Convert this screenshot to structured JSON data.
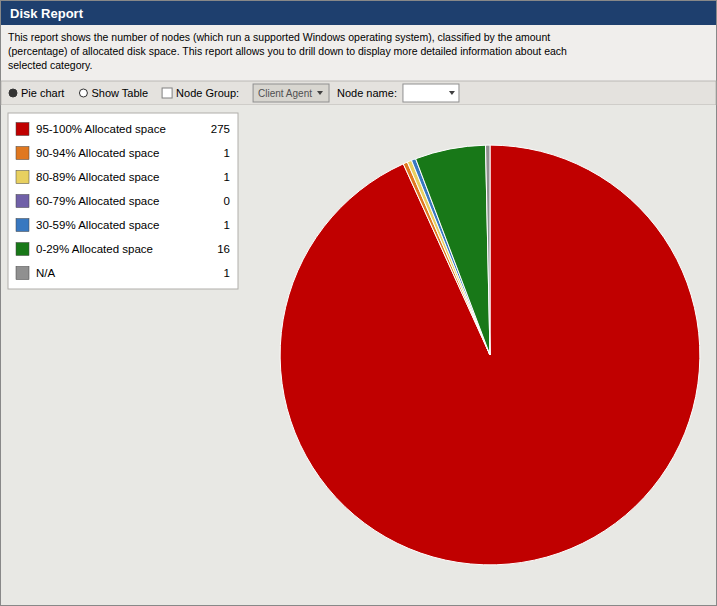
{
  "chart_data": {
    "type": "pie",
    "title": "Disk Report",
    "annotations": [
      [
        "This report shows the number of nodes (which run a supported Windows operating system), classified by the amount",
        "(percentage) of allocated disk space. This report allows you to drill down to display more detailed information about each",
        "selected category."
      ],
      [
        "Pie chart",
        "Show Table",
        "Node Group:",
        "Client Agent",
        "Node name:"
      ]
    ],
    "categories": [
      "95-100% Allocated space",
      "90-94% Allocated space",
      "80-89% Allocated space",
      "60-79% Allocated space",
      "30-59% Allocated space",
      "0-29% Allocated space",
      "N/A"
    ],
    "values": [
      275,
      1,
      1,
      0,
      1,
      16,
      1
    ],
    "colors": [
      "#c00000",
      "#e07820",
      "#e8d060",
      "#7060a8",
      "#3878c0",
      "#187818",
      "#909090"
    ],
    "legend": "upper left",
    "data_labels": true
  }
}
